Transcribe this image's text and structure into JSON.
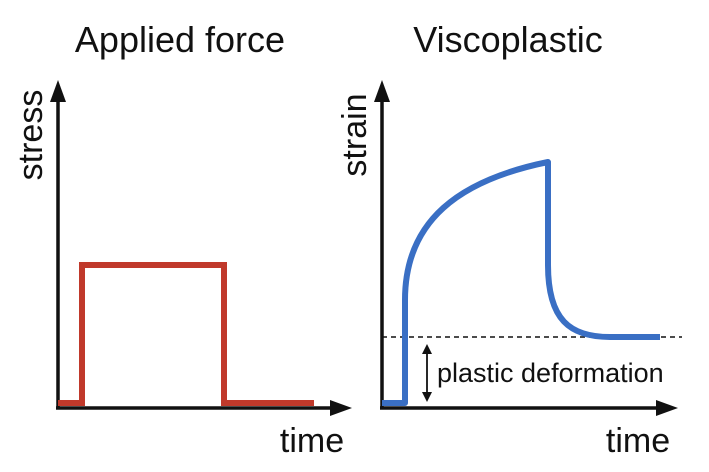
{
  "panels": [
    {
      "title": "Applied force",
      "ylabel": "stress",
      "xlabel": "time",
      "curve_color": "#c0392b",
      "curve": "square-pulse"
    },
    {
      "title": "Viscoplastic",
      "ylabel": "strain",
      "xlabel": "time",
      "curve_color": "#3a6fc4",
      "curve": "viscoplastic-response",
      "annotation": "plastic deformation"
    }
  ]
}
